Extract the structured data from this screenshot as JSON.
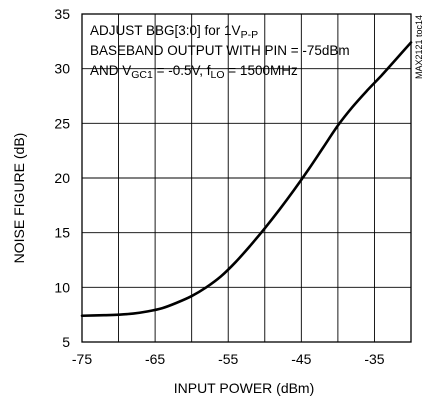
{
  "chart_data": {
    "type": "line",
    "xlabel": "INPUT POWER (dBm)",
    "ylabel": "NOISE FIGURE (dB)",
    "xlim": [
      -75,
      -30
    ],
    "ylim": [
      5,
      35
    ],
    "xticks": [
      -75,
      -65,
      -55,
      -45,
      -35
    ],
    "yticks": [
      5,
      10,
      15,
      20,
      25,
      30,
      35
    ],
    "grid": true,
    "side_label": "MAX2121 toc14",
    "annotations": {
      "line1": {
        "text": "ADJUST BBG[3:0] for 1V",
        "sub": "P-P"
      },
      "line2": {
        "text": "BASEBAND OUTPUT WITH PIN = -75dBm"
      },
      "line3": {
        "pre": "AND V",
        "sub1": "GC1",
        "mid": " = -0.5V, f",
        "sub2": "LO",
        "post": " = 1500MHz"
      }
    },
    "series": [
      {
        "x": [
          -75,
          -72,
          -70,
          -68,
          -66,
          -64,
          -62,
          -60,
          -58,
          -56,
          -54,
          -52,
          -50,
          -48,
          -46,
          -44,
          -42,
          -40,
          -38,
          -36,
          -34,
          -32,
          -30
        ],
        "y": [
          7.4,
          7.45,
          7.5,
          7.6,
          7.8,
          8.1,
          8.6,
          9.2,
          10.0,
          11.0,
          12.3,
          13.8,
          15.4,
          17.1,
          18.9,
          20.8,
          22.8,
          24.8,
          26.5,
          28.0,
          29.4,
          30.9,
          32.4
        ]
      }
    ]
  }
}
